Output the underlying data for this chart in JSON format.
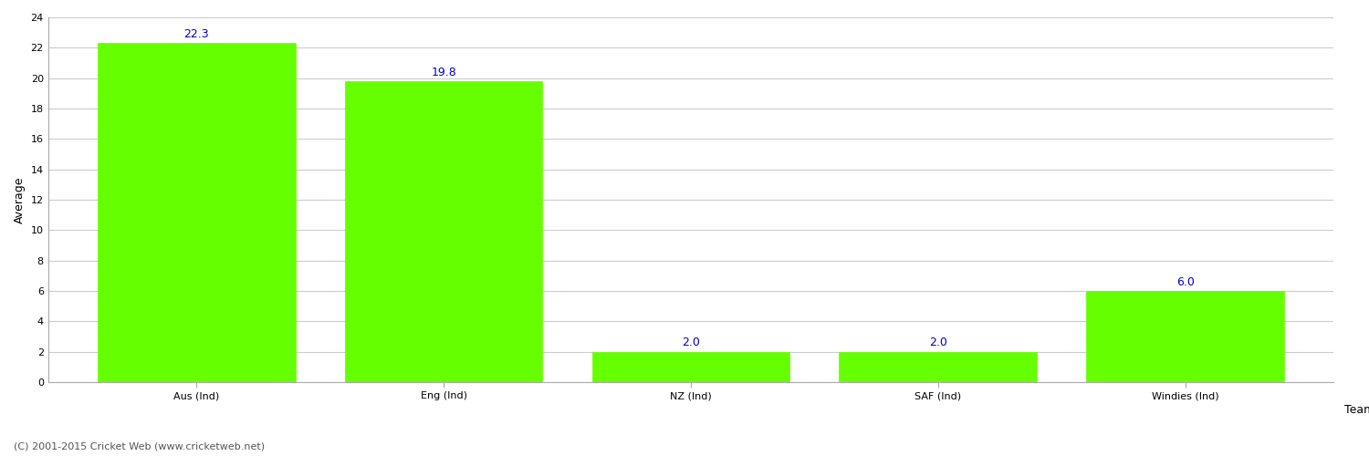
{
  "categories": [
    "Aus (Ind)",
    "Eng (Ind)",
    "NZ (Ind)",
    "SAF (Ind)",
    "Windies (Ind)"
  ],
  "values": [
    22.3,
    19.8,
    2.0,
    2.0,
    6.0
  ],
  "bar_color": "#66ff00",
  "bar_edge_color": "#66ff00",
  "value_label_color": "#0000cc",
  "value_label_fontsize": 9,
  "xlabel": "Team",
  "ylabel": "Average",
  "ylim": [
    0,
    24
  ],
  "yticks": [
    0,
    2,
    4,
    6,
    8,
    10,
    12,
    14,
    16,
    18,
    20,
    22,
    24
  ],
  "grid_color": "#cccccc",
  "background_color": "#ffffff",
  "footer_text": "(C) 2001-2015 Cricket Web (www.cricketweb.net)",
  "footer_fontsize": 8,
  "footer_color": "#555555",
  "xlabel_fontsize": 9,
  "ylabel_fontsize": 9,
  "tick_fontsize": 8,
  "bar_width": 0.8
}
